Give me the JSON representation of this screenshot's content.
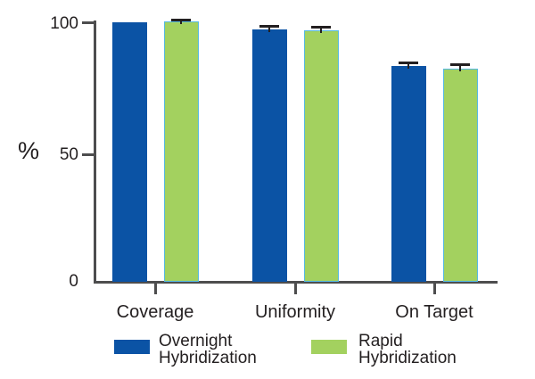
{
  "chart_data": {
    "type": "bar",
    "title": "",
    "categories": [
      "Coverage",
      "Uniformity",
      "On Target"
    ],
    "series": [
      {
        "name": "Overnight Hybridization",
        "legend_line1": "Overnight",
        "legend_line2": "Hybridization",
        "color": "#0b53a5",
        "values": [
          99.5,
          97,
          83
        ],
        "errors": [
          0,
          1,
          1
        ]
      },
      {
        "name": "Rapid Hybridization",
        "legend_line1": "Rapid",
        "legend_line2": "Hybridization",
        "color": "#a3d15f",
        "border_color": "#56b9e4",
        "values": [
          100,
          96.5,
          82
        ],
        "errors": [
          0.5,
          1,
          1.2
        ]
      }
    ],
    "ylabel": "%",
    "ytick_labels": [
      "0",
      "50",
      "100"
    ],
    "ylim": [
      0,
      100
    ],
    "grid": false,
    "legend_position": "bottom",
    "axis_color": "#4d4d4e",
    "error_bar_color": "#231f20"
  }
}
